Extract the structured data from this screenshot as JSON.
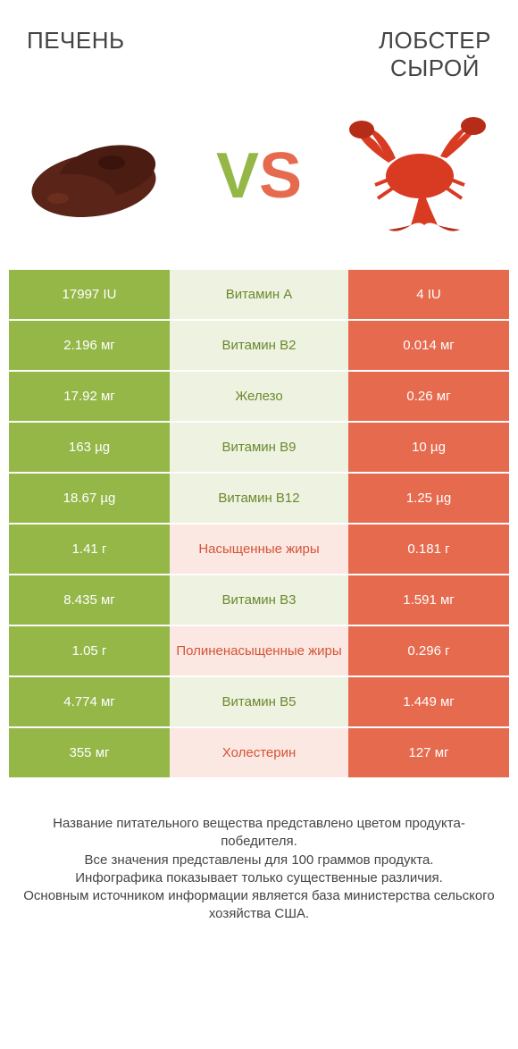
{
  "header": {
    "left_title": "ПЕЧЕНЬ",
    "right_title_line1": "ЛОБСТЕР",
    "right_title_line2": "СЫРОЙ"
  },
  "vs": {
    "v": "V",
    "s": "S"
  },
  "colors": {
    "left_bg": "#94b748",
    "right_bg": "#e66a4e",
    "mid_bg_left": "#eef2e0",
    "mid_bg_right": "#fbe8e2",
    "mid_text_left": "#6a8a2e",
    "mid_text_right": "#d45438"
  },
  "rows": [
    {
      "left": "17997 IU",
      "mid": "Витамин A",
      "right": "4 IU",
      "winner": "left"
    },
    {
      "left": "2.196 мг",
      "mid": "Витамин B2",
      "right": "0.014 мг",
      "winner": "left"
    },
    {
      "left": "17.92 мг",
      "mid": "Железо",
      "right": "0.26 мг",
      "winner": "left"
    },
    {
      "left": "163 µg",
      "mid": "Витамин B9",
      "right": "10 µg",
      "winner": "left"
    },
    {
      "left": "18.67 µg",
      "mid": "Витамин B12",
      "right": "1.25 µg",
      "winner": "left"
    },
    {
      "left": "1.41 г",
      "mid": "Насыщенные жиры",
      "right": "0.181 г",
      "winner": "right"
    },
    {
      "left": "8.435 мг",
      "mid": "Витамин B3",
      "right": "1.591 мг",
      "winner": "left"
    },
    {
      "left": "1.05 г",
      "mid": "Полиненасыщенные жиры",
      "right": "0.296 г",
      "winner": "right"
    },
    {
      "left": "4.774 мг",
      "mid": "Витамин B5",
      "right": "1.449 мг",
      "winner": "left"
    },
    {
      "left": "355 мг",
      "mid": "Холестерин",
      "right": "127 мг",
      "winner": "right"
    }
  ],
  "footer": {
    "line1": "Название питательного вещества представлено цветом продукта-победителя.",
    "line2": "Все значения представлены для 100 граммов продукта.",
    "line3": "Инфографика показывает только существенные различия.",
    "line4": "Основным источником информации является база министерства сельского хозяйства США."
  }
}
